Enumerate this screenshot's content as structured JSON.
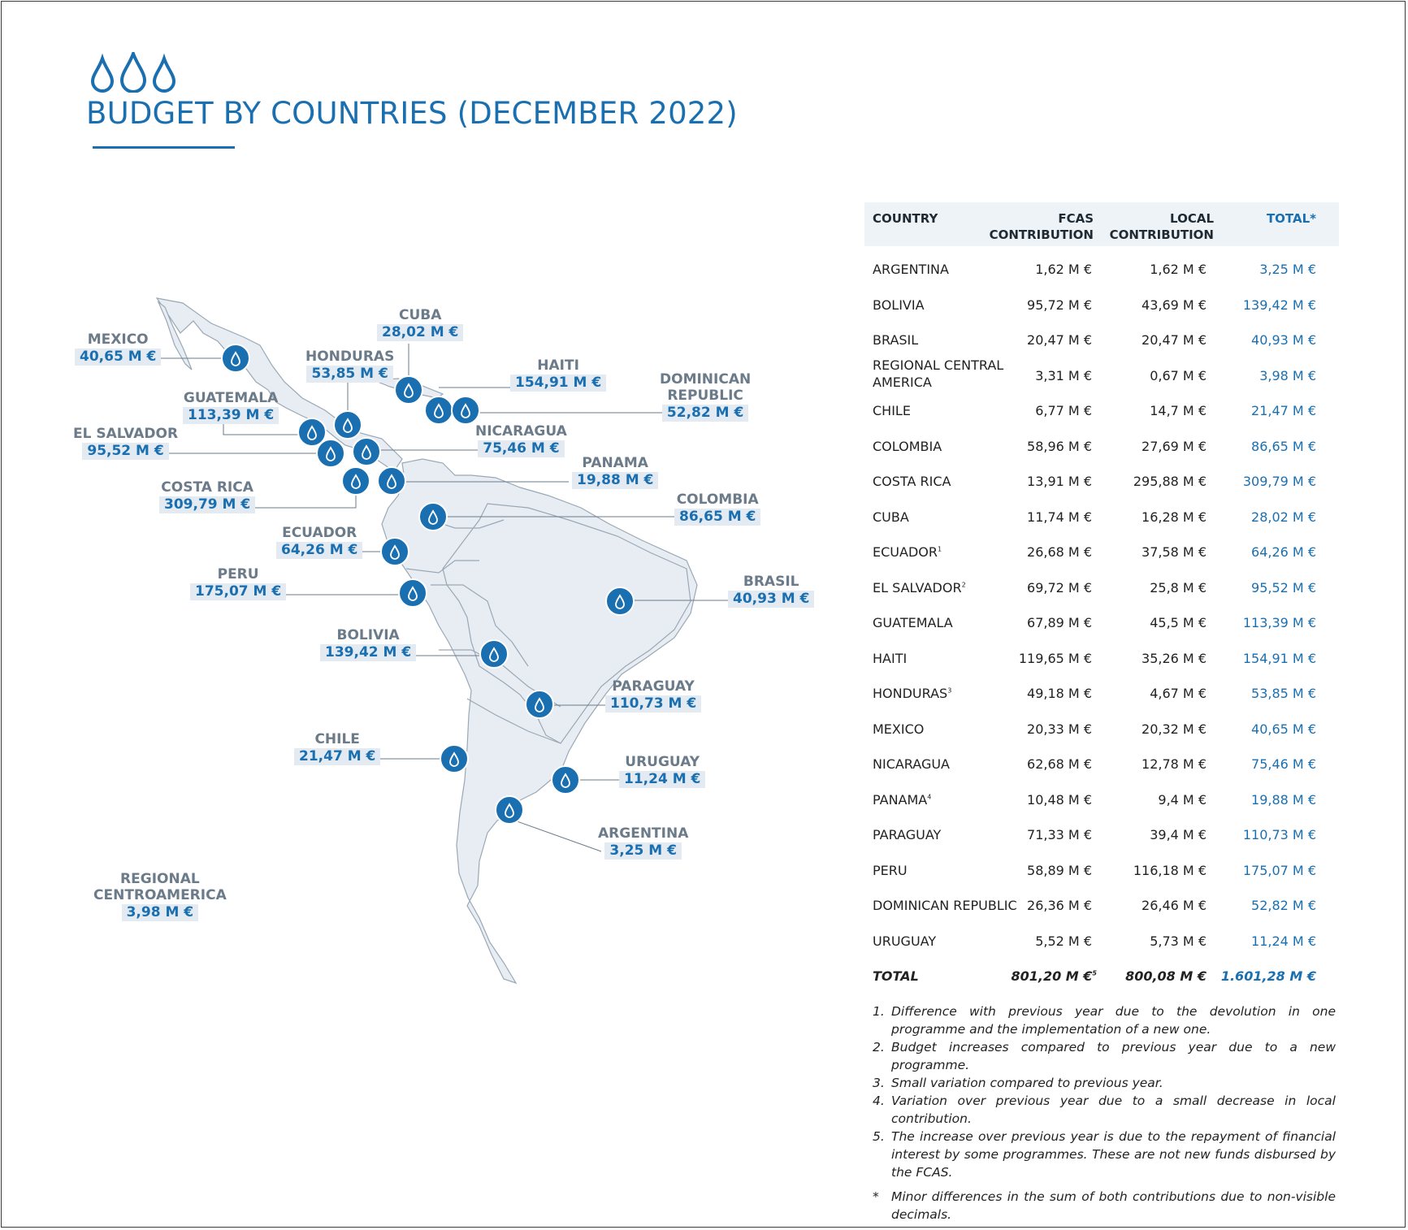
{
  "header": {
    "title": "BUDGET BY COUNTRIES (DECEMBER 2022)",
    "icon": "water-drops-icon",
    "accent_color": "#1a6fb1"
  },
  "map": {
    "label_color": "#6b7b89",
    "value_bg": "#e3eaf1",
    "marker_color": "#1a6fb1",
    "labels": [
      {
        "key": "mexico",
        "name": "MEXICO",
        "value": "40,65 M €"
      },
      {
        "key": "cuba",
        "name": "CUBA",
        "value": "28,02 M €"
      },
      {
        "key": "honduras",
        "name": "HONDURAS",
        "value": "53,85 M €"
      },
      {
        "key": "haiti",
        "name": "HAITI",
        "value": "154,91 M €"
      },
      {
        "key": "dominican",
        "name": "DOMINICAN\nREPUBLIC",
        "value": "52,82 M €"
      },
      {
        "key": "guatemala",
        "name": "GUATEMALA",
        "value": "113,39 M €"
      },
      {
        "key": "elsalvador",
        "name": "EL SALVADOR",
        "value": "95,52 M €"
      },
      {
        "key": "nicaragua",
        "name": "NICARAGUA",
        "value": "75,46 M €"
      },
      {
        "key": "panama",
        "name": "PANAMA",
        "value": "19,88 M €"
      },
      {
        "key": "costarica",
        "name": "COSTA RICA",
        "value": "309,79 M €"
      },
      {
        "key": "colombia",
        "name": "COLOMBIA",
        "value": "86,65 M €"
      },
      {
        "key": "ecuador",
        "name": "ECUADOR",
        "value": "64,26 M €"
      },
      {
        "key": "peru",
        "name": "PERU",
        "value": "175,07 M €"
      },
      {
        "key": "brasil",
        "name": "BRASIL",
        "value": "40,93 M €"
      },
      {
        "key": "bolivia",
        "name": "BOLIVIA",
        "value": "139,42 M €"
      },
      {
        "key": "paraguay",
        "name": "PARAGUAY",
        "value": "110,73 M €"
      },
      {
        "key": "chile",
        "name": "CHILE",
        "value": "21,47 M €"
      },
      {
        "key": "uruguay",
        "name": "URUGUAY",
        "value": "11,24 M €"
      },
      {
        "key": "argentina",
        "name": "ARGENTINA",
        "value": "3,25 M €"
      },
      {
        "key": "regional",
        "name": "REGIONAL\nCENTROAMERICA",
        "value": "3,98 M €"
      }
    ]
  },
  "table": {
    "headers": {
      "country": "COUNTRY",
      "fcas": "FCAS\nCONTRIBUTION",
      "local": "LOCAL\nCONTRIBUTION",
      "total": "TOTAL*"
    },
    "rows": [
      {
        "country": "ARGENTINA",
        "sup": "",
        "fcas": "1,62 M €",
        "local": "1,62 M €",
        "total": "3,25 M €"
      },
      {
        "country": "BOLIVIA",
        "sup": "",
        "fcas": "95,72 M €",
        "local": "43,69 M €",
        "total": "139,42 M €"
      },
      {
        "country": "BRASIL",
        "sup": "",
        "fcas": "20,47 M €",
        "local": "20,47 M €",
        "total": "40,93 M €"
      },
      {
        "country": "REGIONAL CENTRAL AMERICA",
        "sup": "",
        "fcas": "3,31 M €",
        "local": "0,67 M €",
        "total": "3,98 M €"
      },
      {
        "country": "CHILE",
        "sup": "",
        "fcas": "6,77 M €",
        "local": "14,7 M €",
        "total": "21,47 M €"
      },
      {
        "country": "COLOMBIA",
        "sup": "",
        "fcas": "58,96 M €",
        "local": "27,69 M €",
        "total": "86,65 M €"
      },
      {
        "country": "COSTA RICA",
        "sup": "",
        "fcas": "13,91 M €",
        "local": "295,88 M €",
        "total": "309,79 M €"
      },
      {
        "country": "CUBA",
        "sup": "",
        "fcas": "11,74 M €",
        "local": "16,28 M €",
        "total": "28,02 M €"
      },
      {
        "country": "ECUADOR",
        "sup": "1",
        "fcas": "26,68 M €",
        "local": "37,58 M €",
        "total": "64,26 M €"
      },
      {
        "country": "EL SALVADOR",
        "sup": "2",
        "fcas": "69,72 M €",
        "local": "25,8 M €",
        "total": "95,52 M €"
      },
      {
        "country": "GUATEMALA",
        "sup": "",
        "fcas": "67,89 M €",
        "local": "45,5 M €",
        "total": "113,39 M €"
      },
      {
        "country": "HAITI",
        "sup": "",
        "fcas": "119,65 M €",
        "local": "35,26 M €",
        "total": "154,91 M €"
      },
      {
        "country": "HONDURAS",
        "sup": "3",
        "fcas": "49,18 M €",
        "local": "4,67 M €",
        "total": "53,85 M €"
      },
      {
        "country": "MEXICO",
        "sup": "",
        "fcas": "20,33 M €",
        "local": "20,32 M €",
        "total": "40,65 M €"
      },
      {
        "country": "NICARAGUA",
        "sup": "",
        "fcas": "62,68 M €",
        "local": "12,78 M €",
        "total": "75,46 M €"
      },
      {
        "country": "PANAMA",
        "sup": "4",
        "fcas": "10,48 M €",
        "local": "9,4 M €",
        "total": "19,88 M €"
      },
      {
        "country": "PARAGUAY",
        "sup": "",
        "fcas": "71,33 M €",
        "local": "39,4 M €",
        "total": "110,73 M €"
      },
      {
        "country": "PERU",
        "sup": "",
        "fcas": "58,89 M €",
        "local": "116,18 M €",
        "total": "175,07 M €"
      },
      {
        "country": "DOMINICAN REPUBLIC",
        "sup": "",
        "fcas": "26,36 M €",
        "local": "26,46 M €",
        "total": "52,82 M €"
      },
      {
        "country": "URUGUAY",
        "sup": "",
        "fcas": "5,52 M €",
        "local": "5,73 M €",
        "total": "11,24 M €"
      }
    ],
    "total": {
      "label": "TOTAL",
      "fcas": "801,20 M €",
      "fcas_sup": "5",
      "local": "800,08 M €",
      "total": "1.601,28 M €"
    }
  },
  "notes": [
    {
      "num": "1.",
      "text": "Difference with previous year due to the devolution in one programme and the implementation of a new one."
    },
    {
      "num": "2.",
      "text": "Budget increases compared to previous year due to a new programme."
    },
    {
      "num": "3.",
      "text": "Small variation compared to previous year."
    },
    {
      "num": "4.",
      "text": "Variation over previous year due to a small decrease in local contribution."
    },
    {
      "num": "5.",
      "text": "The increase over previous year is due to the repayment of financial interest by some programmes. These are not new funds disbursed by the FCAS."
    },
    {
      "num": "*",
      "text": "Minor differences in the sum of both contributions due to non-visible decimals."
    }
  ]
}
